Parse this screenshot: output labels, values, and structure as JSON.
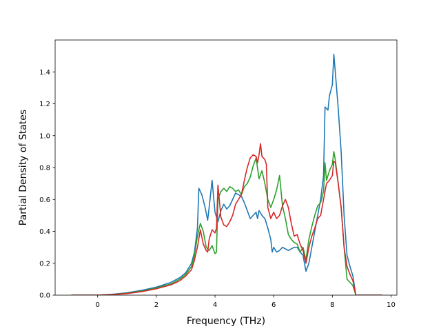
{
  "chart_data": {
    "type": "line",
    "xlabel": "Frequency (THz)",
    "ylabel": "Partial Density of States",
    "xlim": [
      -1.45,
      10.2
    ],
    "ylim": [
      0.0,
      1.6
    ],
    "xticks": [
      0,
      2,
      4,
      6,
      8,
      10
    ],
    "yticks": [
      0.0,
      0.2,
      0.4,
      0.6,
      0.8,
      1.0,
      1.2,
      1.4
    ],
    "grid": false,
    "series": [
      {
        "color": "#1f77b4",
        "points": [
          [
            -0.9,
            0
          ],
          [
            0,
            0
          ],
          [
            0.5,
            0.005
          ],
          [
            1,
            0.015
          ],
          [
            1.5,
            0.03
          ],
          [
            2,
            0.05
          ],
          [
            2.5,
            0.08
          ],
          [
            2.8,
            0.11
          ],
          [
            3,
            0.14
          ],
          [
            3.2,
            0.2
          ],
          [
            3.3,
            0.27
          ],
          [
            3.4,
            0.42
          ],
          [
            3.45,
            0.67
          ],
          [
            3.55,
            0.63
          ],
          [
            3.65,
            0.56
          ],
          [
            3.75,
            0.47
          ],
          [
            3.8,
            0.55
          ],
          [
            3.9,
            0.72
          ],
          [
            4.0,
            0.52
          ],
          [
            4.1,
            0.46
          ],
          [
            4.2,
            0.53
          ],
          [
            4.3,
            0.57
          ],
          [
            4.4,
            0.54
          ],
          [
            4.5,
            0.56
          ],
          [
            4.6,
            0.6
          ],
          [
            4.7,
            0.64
          ],
          [
            4.8,
            0.63
          ],
          [
            4.9,
            0.62
          ],
          [
            5.0,
            0.58
          ],
          [
            5.1,
            0.53
          ],
          [
            5.2,
            0.48
          ],
          [
            5.3,
            0.5
          ],
          [
            5.4,
            0.52
          ],
          [
            5.45,
            0.48
          ],
          [
            5.5,
            0.53
          ],
          [
            5.6,
            0.5
          ],
          [
            5.7,
            0.48
          ],
          [
            5.8,
            0.42
          ],
          [
            5.9,
            0.35
          ],
          [
            5.95,
            0.27
          ],
          [
            6.0,
            0.3
          ],
          [
            6.1,
            0.27
          ],
          [
            6.2,
            0.28
          ],
          [
            6.3,
            0.3
          ],
          [
            6.4,
            0.29
          ],
          [
            6.5,
            0.28
          ],
          [
            6.6,
            0.29
          ],
          [
            6.7,
            0.3
          ],
          [
            6.8,
            0.3
          ],
          [
            6.9,
            0.27
          ],
          [
            7.0,
            0.25
          ],
          [
            7.1,
            0.15
          ],
          [
            7.2,
            0.2
          ],
          [
            7.3,
            0.3
          ],
          [
            7.4,
            0.4
          ],
          [
            7.5,
            0.5
          ],
          [
            7.6,
            0.6
          ],
          [
            7.7,
            0.75
          ],
          [
            7.75,
            1.18
          ],
          [
            7.85,
            1.16
          ],
          [
            7.9,
            1.25
          ],
          [
            8.0,
            1.32
          ],
          [
            8.05,
            1.51
          ],
          [
            8.1,
            1.4
          ],
          [
            8.2,
            1.17
          ],
          [
            8.3,
            0.9
          ],
          [
            8.4,
            0.5
          ],
          [
            8.5,
            0.25
          ],
          [
            8.6,
            0.18
          ],
          [
            8.7,
            0.12
          ],
          [
            8.8,
            0.0
          ],
          [
            9.7,
            0.0
          ]
        ]
      },
      {
        "color": "#2ca02c",
        "points": [
          [
            -0.9,
            0
          ],
          [
            0,
            0
          ],
          [
            0.5,
            0.004
          ],
          [
            1,
            0.012
          ],
          [
            1.5,
            0.025
          ],
          [
            2,
            0.045
          ],
          [
            2.5,
            0.07
          ],
          [
            2.8,
            0.1
          ],
          [
            3,
            0.13
          ],
          [
            3.2,
            0.18
          ],
          [
            3.3,
            0.25
          ],
          [
            3.4,
            0.37
          ],
          [
            3.5,
            0.45
          ],
          [
            3.6,
            0.4
          ],
          [
            3.7,
            0.3
          ],
          [
            3.8,
            0.28
          ],
          [
            3.9,
            0.31
          ],
          [
            4.0,
            0.26
          ],
          [
            4.05,
            0.27
          ],
          [
            4.1,
            0.6
          ],
          [
            4.2,
            0.65
          ],
          [
            4.3,
            0.67
          ],
          [
            4.4,
            0.65
          ],
          [
            4.5,
            0.68
          ],
          [
            4.6,
            0.67
          ],
          [
            4.7,
            0.65
          ],
          [
            4.8,
            0.66
          ],
          [
            4.9,
            0.63
          ],
          [
            5.0,
            0.68
          ],
          [
            5.1,
            0.7
          ],
          [
            5.2,
            0.74
          ],
          [
            5.3,
            0.81
          ],
          [
            5.4,
            0.86
          ],
          [
            5.5,
            0.73
          ],
          [
            5.6,
            0.78
          ],
          [
            5.7,
            0.7
          ],
          [
            5.8,
            0.6
          ],
          [
            5.9,
            0.55
          ],
          [
            6.0,
            0.6
          ],
          [
            6.1,
            0.66
          ],
          [
            6.2,
            0.75
          ],
          [
            6.3,
            0.56
          ],
          [
            6.4,
            0.48
          ],
          [
            6.5,
            0.38
          ],
          [
            6.6,
            0.35
          ],
          [
            6.7,
            0.33
          ],
          [
            6.8,
            0.32
          ],
          [
            6.9,
            0.27
          ],
          [
            7.0,
            0.3
          ],
          [
            7.1,
            0.22
          ],
          [
            7.2,
            0.35
          ],
          [
            7.3,
            0.43
          ],
          [
            7.4,
            0.5
          ],
          [
            7.5,
            0.56
          ],
          [
            7.6,
            0.58
          ],
          [
            7.7,
            0.65
          ],
          [
            7.75,
            0.83
          ],
          [
            7.8,
            0.72
          ],
          [
            7.9,
            0.78
          ],
          [
            8.0,
            0.82
          ],
          [
            8.05,
            0.9
          ],
          [
            8.1,
            0.85
          ],
          [
            8.2,
            0.7
          ],
          [
            8.3,
            0.55
          ],
          [
            8.4,
            0.3
          ],
          [
            8.5,
            0.1
          ],
          [
            8.6,
            0.08
          ],
          [
            8.7,
            0.06
          ],
          [
            8.8,
            0.0
          ],
          [
            9.7,
            0.0
          ]
        ]
      },
      {
        "color": "#d62728",
        "points": [
          [
            -0.9,
            0
          ],
          [
            0,
            0
          ],
          [
            0.5,
            0.003
          ],
          [
            1,
            0.01
          ],
          [
            1.5,
            0.022
          ],
          [
            2,
            0.04
          ],
          [
            2.5,
            0.065
          ],
          [
            2.8,
            0.09
          ],
          [
            3,
            0.12
          ],
          [
            3.2,
            0.16
          ],
          [
            3.3,
            0.22
          ],
          [
            3.4,
            0.3
          ],
          [
            3.5,
            0.41
          ],
          [
            3.6,
            0.32
          ],
          [
            3.7,
            0.28
          ],
          [
            3.75,
            0.27
          ],
          [
            3.8,
            0.35
          ],
          [
            3.9,
            0.41
          ],
          [
            4.0,
            0.39
          ],
          [
            4.05,
            0.42
          ],
          [
            4.1,
            0.69
          ],
          [
            4.2,
            0.49
          ],
          [
            4.3,
            0.44
          ],
          [
            4.4,
            0.43
          ],
          [
            4.5,
            0.46
          ],
          [
            4.6,
            0.5
          ],
          [
            4.7,
            0.57
          ],
          [
            4.8,
            0.6
          ],
          [
            4.9,
            0.63
          ],
          [
            5.0,
            0.72
          ],
          [
            5.1,
            0.8
          ],
          [
            5.2,
            0.86
          ],
          [
            5.3,
            0.88
          ],
          [
            5.4,
            0.87
          ],
          [
            5.45,
            0.83
          ],
          [
            5.5,
            0.88
          ],
          [
            5.55,
            0.95
          ],
          [
            5.6,
            0.87
          ],
          [
            5.7,
            0.85
          ],
          [
            5.75,
            0.82
          ],
          [
            5.8,
            0.55
          ],
          [
            5.9,
            0.48
          ],
          [
            6.0,
            0.52
          ],
          [
            6.1,
            0.48
          ],
          [
            6.2,
            0.5
          ],
          [
            6.3,
            0.56
          ],
          [
            6.4,
            0.6
          ],
          [
            6.5,
            0.55
          ],
          [
            6.6,
            0.45
          ],
          [
            6.7,
            0.37
          ],
          [
            6.8,
            0.38
          ],
          [
            6.9,
            0.32
          ],
          [
            7.0,
            0.28
          ],
          [
            7.1,
            0.2
          ],
          [
            7.2,
            0.3
          ],
          [
            7.3,
            0.37
          ],
          [
            7.4,
            0.42
          ],
          [
            7.5,
            0.48
          ],
          [
            7.6,
            0.5
          ],
          [
            7.7,
            0.6
          ],
          [
            7.8,
            0.7
          ],
          [
            7.9,
            0.72
          ],
          [
            8.0,
            0.75
          ],
          [
            8.05,
            0.84
          ],
          [
            8.1,
            0.83
          ],
          [
            8.2,
            0.7
          ],
          [
            8.3,
            0.55
          ],
          [
            8.4,
            0.3
          ],
          [
            8.5,
            0.18
          ],
          [
            8.6,
            0.13
          ],
          [
            8.7,
            0.09
          ],
          [
            8.8,
            0.0
          ],
          [
            9.7,
            0.0
          ]
        ]
      }
    ]
  }
}
